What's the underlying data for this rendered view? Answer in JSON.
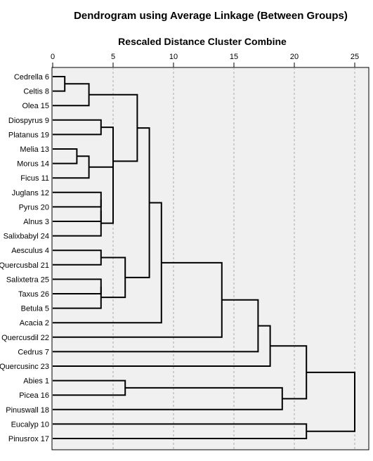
{
  "chart_data": {
    "type": "dendrogram",
    "title": "Dendrogram using Average Linkage (Between Groups)",
    "xlabel": "Rescaled Distance Cluster Combine",
    "xlim": [
      0,
      25
    ],
    "x_ticks": [
      0,
      5,
      10,
      15,
      20,
      25
    ],
    "grid": true,
    "leaves": [
      "Cedrella 6",
      "Celtis 8",
      "Olea 15",
      "Diospyrus 9",
      "Platanus 19",
      "Melia 13",
      "Morus 14",
      "Ficus 11",
      "Juglans 12",
      "Pyrus 20",
      "Alnus 3",
      "Salixbabyl 24",
      "Aesculus 4",
      "Quercusbal 21",
      "Salixtetra 25",
      "Taxus 26",
      "Betula 5",
      "Acacia 2",
      "Quercusdil 22",
      "Cedrus 7",
      "Quercusinc 23",
      "Abies 1",
      "Picea 16",
      "Pinuswall 18",
      "Eucalyp 10",
      "Pinusrox 17"
    ],
    "merges": [
      {
        "left": "L0",
        "right": "L1",
        "distance": 1.0
      },
      {
        "left": "L5",
        "right": "L6",
        "distance": 2.0
      },
      {
        "left": "M0",
        "right": "L2",
        "distance": 3.0
      },
      {
        "left": "M1",
        "right": "L7",
        "distance": 3.0
      },
      {
        "left": "L3",
        "right": "L4",
        "distance": 4.0
      },
      {
        "left": "L8",
        "right": "L9",
        "distance": 4.0
      },
      {
        "left": "M5",
        "right": "L10",
        "distance": 4.0
      },
      {
        "left": "M6",
        "right": "L11",
        "distance": 4.0
      },
      {
        "left": "L12",
        "right": "L13",
        "distance": 4.0
      },
      {
        "left": "L14",
        "right": "L15",
        "distance": 4.0
      },
      {
        "left": "M9",
        "right": "L16",
        "distance": 4.0
      },
      {
        "left": "M3",
        "right": "M7",
        "distance": 5.0
      },
      {
        "left": "M4",
        "right": "M11",
        "distance": 5.0
      },
      {
        "left": "L21",
        "right": "L22",
        "distance": 6.0
      },
      {
        "left": "M8",
        "right": "M10",
        "distance": 6.0
      },
      {
        "left": "M2",
        "right": "M12",
        "distance": 7.0
      },
      {
        "left": "M15",
        "right": "M14",
        "distance": 8.0
      },
      {
        "left": "M16",
        "right": "L17",
        "distance": 9.0
      },
      {
        "left": "M17",
        "right": "L18",
        "distance": 14.0
      },
      {
        "left": "M18",
        "right": "L19",
        "distance": 17.0
      },
      {
        "left": "M19",
        "right": "L20",
        "distance": 18.0
      },
      {
        "left": "M13",
        "right": "L23",
        "distance": 19.0
      },
      {
        "left": "M20",
        "right": "M21",
        "distance": 21.0
      },
      {
        "left": "L24",
        "right": "L25",
        "distance": 21.0
      },
      {
        "left": "M22",
        "right": "M23",
        "distance": 25.0
      }
    ]
  }
}
